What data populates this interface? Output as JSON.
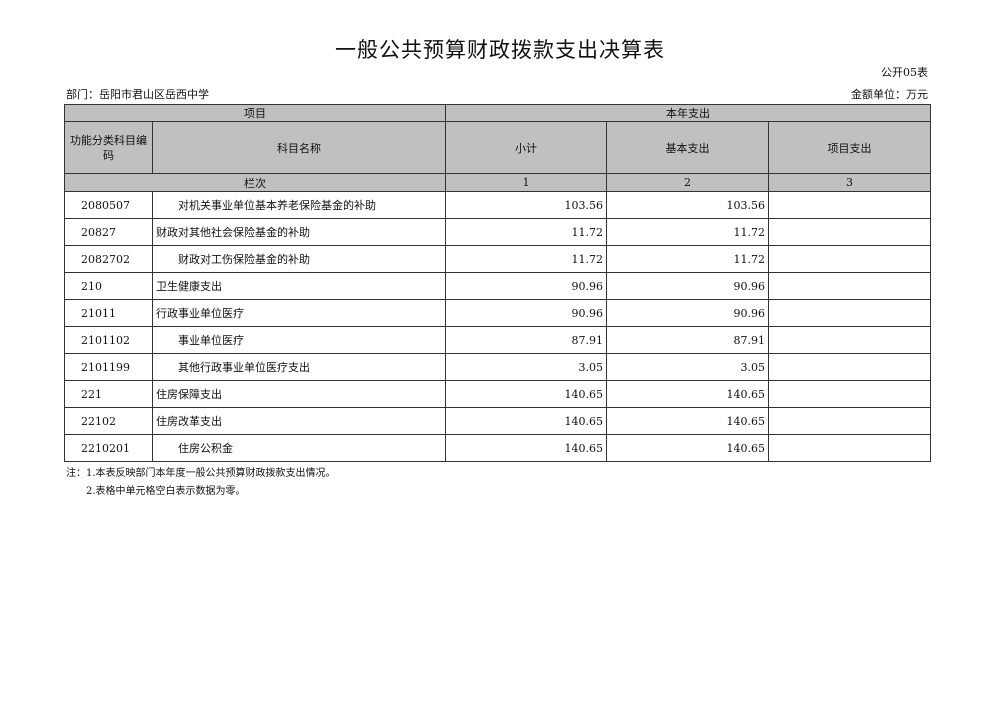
{
  "title": "一般公共预算财政拨款支出决算表",
  "table_code": "公开05表",
  "department": "部门：岳阳市君山区岳西中学",
  "unit": "金额单位：万元",
  "header": {
    "project": "项目",
    "current_year": "本年支出",
    "code_col": "功能分类科目编码",
    "name_col": "科目名称",
    "subtotal": "小计",
    "basic": "基本支出",
    "project_exp": "项目支出",
    "row_index": "栏次",
    "idx1": "1",
    "idx2": "2",
    "idx3": "3"
  },
  "rows": [
    {
      "code": "2080507",
      "name": "　　对机关事业单位基本养老保险基金的补助",
      "subtotal": "103.56",
      "basic": "103.56",
      "project": ""
    },
    {
      "code": "20827",
      "name": "财政对其他社会保险基金的补助",
      "subtotal": "11.72",
      "basic": "11.72",
      "project": ""
    },
    {
      "code": "2082702",
      "name": "　　财政对工伤保险基金的补助",
      "subtotal": "11.72",
      "basic": "11.72",
      "project": ""
    },
    {
      "code": "210",
      "name": "卫生健康支出",
      "subtotal": "90.96",
      "basic": "90.96",
      "project": ""
    },
    {
      "code": "21011",
      "name": "行政事业单位医疗",
      "subtotal": "90.96",
      "basic": "90.96",
      "project": ""
    },
    {
      "code": "2101102",
      "name": "　　事业单位医疗",
      "subtotal": "87.91",
      "basic": "87.91",
      "project": ""
    },
    {
      "code": "2101199",
      "name": "　　其他行政事业单位医疗支出",
      "subtotal": "3.05",
      "basic": "3.05",
      "project": ""
    },
    {
      "code": "221",
      "name": "住房保障支出",
      "subtotal": "140.65",
      "basic": "140.65",
      "project": ""
    },
    {
      "code": "22102",
      "name": "住房改革支出",
      "subtotal": "140.65",
      "basic": "140.65",
      "project": ""
    },
    {
      "code": "2210201",
      "name": "　　住房公积金",
      "subtotal": "140.65",
      "basic": "140.65",
      "project": ""
    }
  ],
  "notes": [
    "注：1.本表反映部门本年度一般公共预算财政拨款支出情况。",
    "　　2.表格中单元格空白表示数据为零。"
  ]
}
